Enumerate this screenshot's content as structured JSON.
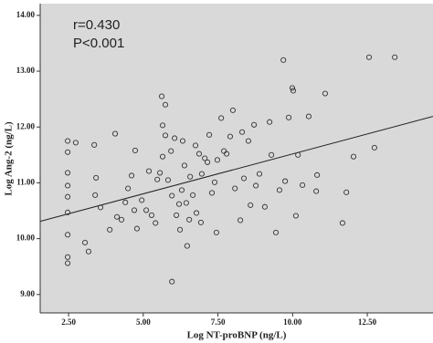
{
  "chart_data": {
    "type": "scatter",
    "annotations": [
      "r=0.430",
      "P<0.001"
    ],
    "x_label": "Log NT-proBNP (ng/L)",
    "y_label": "Log Ang-2 (ng/L)",
    "xlim": [
      1.55,
      14.7
    ],
    "ylim": [
      8.67,
      14.21
    ],
    "xticks": [
      {
        "value": 2.5,
        "label": "2.50"
      },
      {
        "value": 5,
        "label": "5.00"
      },
      {
        "value": 7.5,
        "label": "7.50"
      },
      {
        "value": 10,
        "label": "10.00"
      },
      {
        "value": 12.5,
        "label": "12.50"
      }
    ],
    "yticks": [
      {
        "value": 9,
        "label": "9.00"
      },
      {
        "value": 10,
        "label": "10.00"
      },
      {
        "value": 11,
        "label": "11.00"
      },
      {
        "value": 12,
        "label": "12.00"
      },
      {
        "value": 13,
        "label": "13.00"
      },
      {
        "value": 14,
        "label": "14.00"
      }
    ],
    "background": "#d9d9d9",
    "color": "#333333",
    "fit_line": {
      "x": [
        1.55,
        14.7
      ],
      "y": [
        10.31,
        12.19
      ]
    },
    "x": [
      2.47,
      2.47,
      2.47,
      2.47,
      2.47,
      2.47,
      2.47,
      2.47,
      2.47,
      2.74,
      3.05,
      3.17,
      3.36,
      3.42,
      3.39,
      3.57,
      3.88,
      4.06,
      4.12,
      4.27,
      4.4,
      4.49,
      4.61,
      4.7,
      4.73,
      4.79,
      4.95,
      5.1,
      5.19,
      5.28,
      5.41,
      5.47,
      5.56,
      5.62,
      5.65,
      5.65,
      5.74,
      5.74,
      5.83,
      5.93,
      5.96,
      5.96,
      6.05,
      6.11,
      6.2,
      6.23,
      6.29,
      6.32,
      6.38,
      6.44,
      6.47,
      6.54,
      6.57,
      6.66,
      6.75,
      6.78,
      6.87,
      6.93,
      6.96,
      7.06,
      7.15,
      7.21,
      7.3,
      7.39,
      7.45,
      7.48,
      7.61,
      7.7,
      7.79,
      7.91,
      8.0,
      8.07,
      8.25,
      8.31,
      8.37,
      8.52,
      8.59,
      8.71,
      8.77,
      8.89,
      9.07,
      9.23,
      9.29,
      9.44,
      9.56,
      9.69,
      9.75,
      9.87,
      9.99,
      10.02,
      10.11,
      10.18,
      10.33,
      10.54,
      10.79,
      10.82,
      11.09,
      11.67,
      11.8,
      12.04,
      12.56,
      12.74,
      13.42
    ],
    "values": [
      11.75,
      11.55,
      11.18,
      10.95,
      10.75,
      10.47,
      10.07,
      9.67,
      9.56,
      11.72,
      9.93,
      9.77,
      11.68,
      11.09,
      10.78,
      10.56,
      10.16,
      11.88,
      10.39,
      10.34,
      10.65,
      10.9,
      11.13,
      10.51,
      11.58,
      10.18,
      10.69,
      10.51,
      11.21,
      10.42,
      10.28,
      11.06,
      11.18,
      12.55,
      12.03,
      11.47,
      12.4,
      11.85,
      11.05,
      11.57,
      10.77,
      9.23,
      11.8,
      10.42,
      10.62,
      10.16,
      10.87,
      11.75,
      11.31,
      10.64,
      9.87,
      10.34,
      11.11,
      10.78,
      11.67,
      10.46,
      11.52,
      10.29,
      11.16,
      11.44,
      11.37,
      11.86,
      10.82,
      11.01,
      10.11,
      11.41,
      12.16,
      11.57,
      11.52,
      11.83,
      12.3,
      10.9,
      10.33,
      11.91,
      11.08,
      11.75,
      10.6,
      12.04,
      10.95,
      11.16,
      10.57,
      12.09,
      11.5,
      10.11,
      10.87,
      13.2,
      11.03,
      12.17,
      12.7,
      12.65,
      10.41,
      11.5,
      10.96,
      12.19,
      10.85,
      11.14,
      12.6,
      10.28,
      10.83,
      11.47,
      13.25,
      11.63,
      13.25
    ]
  }
}
